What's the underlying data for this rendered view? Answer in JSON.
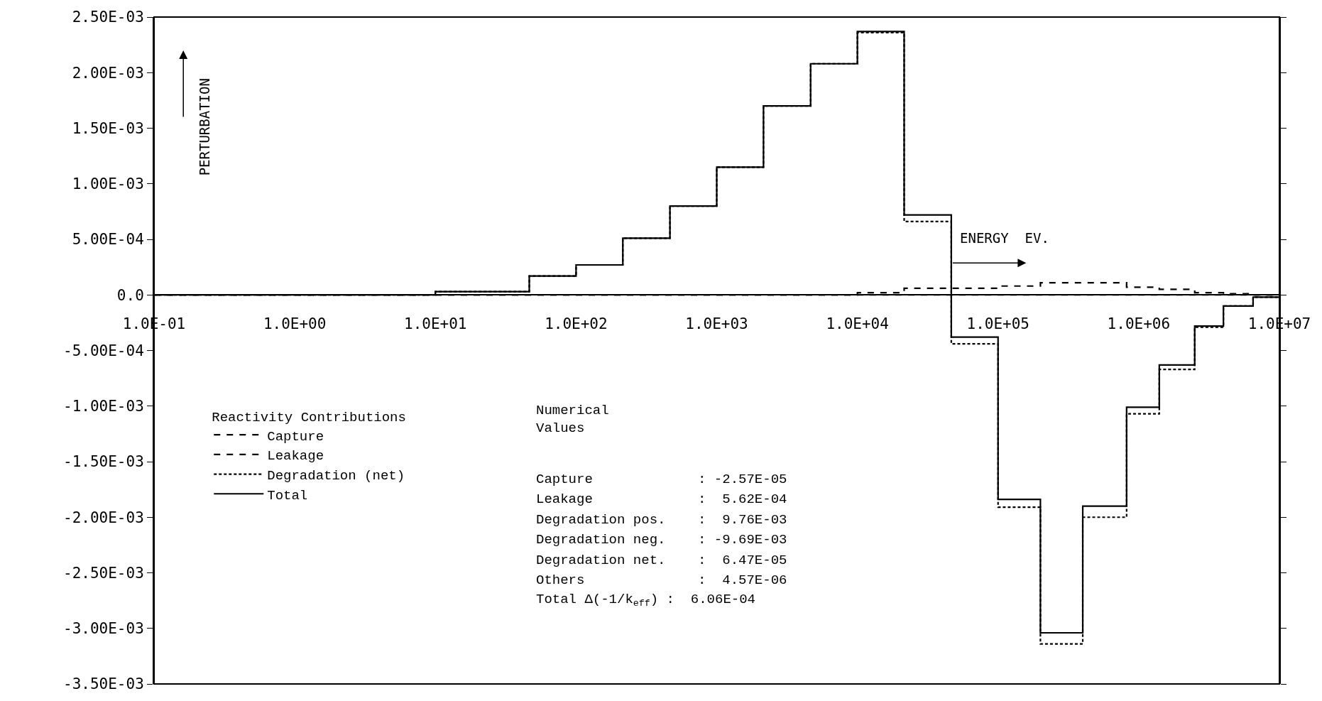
{
  "chart_data": {
    "type": "step",
    "xlabel": "ENERGY  EV.",
    "ylabel": "PERTURBATION",
    "legend_title": "Reactivity Contributions",
    "x": [
      0.1,
      2.15,
      10,
      46.5,
      100,
      215,
      465,
      1000,
      2150,
      4650,
      10000,
      21500,
      46500,
      100000,
      200000,
      400000,
      820000,
      1400000,
      2500000,
      4000000,
      6500000,
      10000000
    ],
    "series": [
      {
        "name": "Capture",
        "color": "#000000",
        "line_style": "dashed",
        "values": [
          0,
          0,
          0,
          0,
          0,
          0,
          0,
          0,
          0,
          0,
          0,
          0,
          0,
          0,
          0,
          0,
          0,
          0,
          0,
          0,
          0,
          0
        ]
      },
      {
        "name": "Leakage",
        "color": "#000000",
        "line_style": "dashed",
        "values": [
          0,
          0,
          0,
          0,
          0,
          0,
          0,
          0,
          0,
          0,
          2e-05,
          6e-05,
          6e-05,
          8e-05,
          0.00011,
          0.00011,
          7e-05,
          5e-05,
          2e-05,
          1e-05,
          0,
          0
        ]
      },
      {
        "name": "Degradation (net)",
        "color": "#000000",
        "line_style": "dotted",
        "values": [
          0,
          0,
          3e-05,
          0.00017,
          0.00027,
          0.00051,
          0.0008,
          0.00115,
          0.0017,
          0.00208,
          0.00236,
          0.00066,
          -0.00044,
          -0.00191,
          -0.00314,
          -0.002,
          -0.00107,
          -0.00067,
          -0.00029,
          -0.0001,
          -2e-05,
          -2e-05
        ]
      },
      {
        "name": "Total",
        "color": "#000000",
        "line_style": "solid",
        "values": [
          0,
          0,
          3e-05,
          0.00017,
          0.00027,
          0.00051,
          0.0008,
          0.00115,
          0.0017,
          0.00208,
          0.00237,
          0.00072,
          -0.00038,
          -0.00184,
          -0.00304,
          -0.0019,
          -0.00101,
          -0.00063,
          -0.00028,
          -0.0001,
          -2e-05,
          -2e-05
        ]
      }
    ],
    "log": "x",
    "xlim": [
      0.1,
      10000000
    ],
    "xticks": [
      {
        "value": 0.1,
        "label": "1.0E-01"
      },
      {
        "value": 1,
        "label": "1.0E+00"
      },
      {
        "value": 10,
        "label": "1.0E+01"
      },
      {
        "value": 100,
        "label": "1.0E+02"
      },
      {
        "value": 1000,
        "label": "1.0E+03"
      },
      {
        "value": 10000,
        "label": "1.0E+04"
      },
      {
        "value": 100000,
        "label": "1.0E+05"
      },
      {
        "value": 1000000,
        "label": "1.0E+06"
      },
      {
        "value": 10000000,
        "label": "1.0E+07"
      }
    ],
    "ylim": [
      -0.0035,
      0.0025
    ],
    "yticks": [
      {
        "value": 0.0025,
        "label": "2.50E-03"
      },
      {
        "value": 0.002,
        "label": "2.00E-03"
      },
      {
        "value": 0.0015,
        "label": "1.50E-03"
      },
      {
        "value": 0.001,
        "label": "1.00E-03"
      },
      {
        "value": 0.0005,
        "label": "5.00E-04"
      },
      {
        "value": 0,
        "label": "0.0"
      },
      {
        "value": -0.0005,
        "label": "-5.00E-04"
      },
      {
        "value": -0.001,
        "label": "-1.00E-03"
      },
      {
        "value": -0.0015,
        "label": "-1.50E-03"
      },
      {
        "value": -0.002,
        "label": "-2.00E-03"
      },
      {
        "value": -0.0025,
        "label": "-2.50E-03"
      },
      {
        "value": -0.003,
        "label": "-3.00E-03"
      },
      {
        "value": -0.0035,
        "label": "-3.50E-03"
      }
    ],
    "legend": "bottom left",
    "marker": "none",
    "annotations": [
      "Numerical Values",
      "Capture             : -2.57E-05",
      "Leakage             :  5.62E-04",
      "Degradation pos.    :  9.76E-03",
      "Degradation neg.    : -9.69E-03",
      "Degradation net.    :  6.47E-05",
      "Others              :  4.57E-06",
      "Total Δ(-1/k$_{eff}$) :  6.06E-04"
    ]
  }
}
